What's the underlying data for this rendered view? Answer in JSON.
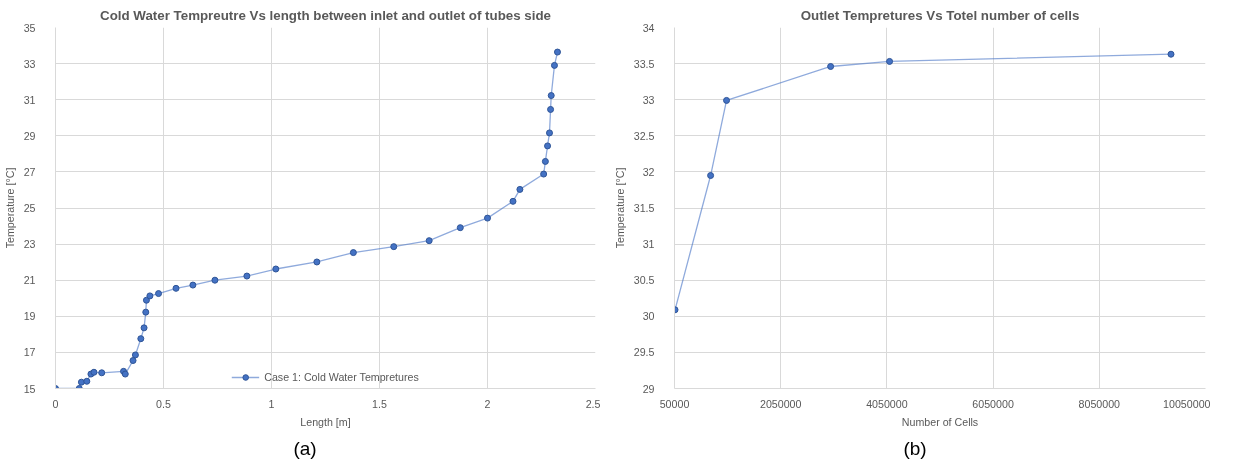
{
  "chart_data": [
    {
      "type": "line",
      "title": "Cold Water Tempreutre Vs length between inlet and outlet of tubes side",
      "xlabel": "Length [m]",
      "ylabel": "Temperature [°C]",
      "series": [
        {
          "name": "Case 1: Cold Water Tempretures",
          "color": "#4472c4",
          "x": [
            0,
            0.11,
            0.12,
            0.145,
            0.164,
            0.178,
            0.214,
            0.315,
            0.323,
            0.359,
            0.37,
            0.395,
            0.41,
            0.418,
            0.421,
            0.437,
            0.477,
            0.558,
            0.636,
            0.738,
            0.886,
            1.02,
            1.21,
            1.379,
            1.566,
            1.73,
            1.874,
            2.0,
            2.118,
            2.15,
            2.26,
            2.268,
            2.278,
            2.287,
            2.292,
            2.295,
            2.31,
            2.324
          ],
          "values": [
            15.0,
            15.0,
            15.35,
            15.4,
            15.8,
            15.9,
            15.87,
            15.95,
            15.8,
            16.55,
            16.86,
            17.76,
            18.36,
            19.23,
            19.89,
            20.13,
            20.26,
            20.55,
            20.73,
            21.0,
            21.23,
            21.62,
            22.01,
            22.53,
            22.86,
            23.19,
            23.91,
            24.44,
            25.37,
            26.03,
            26.88,
            27.58,
            28.44,
            29.16,
            30.46,
            31.23,
            32.9,
            33.64
          ]
        }
      ],
      "xlim": [
        0,
        2.5
      ],
      "xticks": [
        0,
        0.5,
        1,
        1.5,
        2,
        2.5
      ],
      "ylim": [
        15,
        35
      ],
      "yticks": [
        15,
        17,
        19,
        21,
        23,
        25,
        27,
        29,
        31,
        33,
        35
      ],
      "grid": true,
      "legend": "bottom",
      "marker": "circle",
      "line_style": "solid",
      "annotations": [
        "(a)"
      ]
    },
    {
      "type": "line",
      "title": "Outlet Tempretures Vs Totel number of cells",
      "xlabel": "Number of Cells",
      "ylabel": "Temperature [°C]",
      "series": [
        {
          "color": "#4472c4",
          "x": [
            60000,
            730000,
            1030000,
            2990000,
            4100000,
            9400000
          ],
          "values": [
            30.09,
            31.95,
            32.99,
            33.46,
            33.53,
            33.63
          ]
        }
      ],
      "xlim": [
        50000,
        10050000
      ],
      "xticks": [
        50000,
        2050000,
        4050000,
        6050000,
        8050000,
        10050000
      ],
      "ylim": [
        29,
        34
      ],
      "yticks": [
        29,
        29.5,
        30,
        30.5,
        31,
        31.5,
        32,
        32.5,
        33,
        33.5,
        34
      ],
      "grid": true,
      "marker": "circle",
      "line_style": "solid",
      "annotations": [
        "(b)"
      ]
    }
  ]
}
